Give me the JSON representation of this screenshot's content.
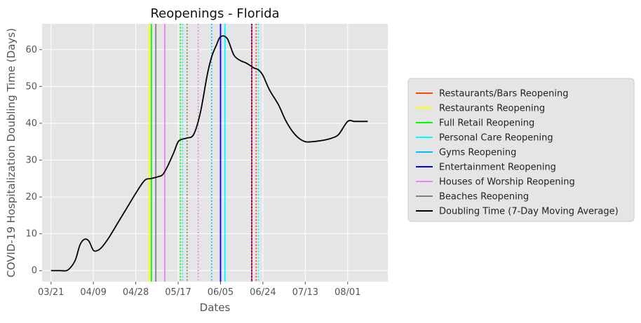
{
  "chart_data": {
    "type": "line",
    "title": "Reopenings - Florida",
    "xlabel": "Dates",
    "ylabel": "COVID-19 Hospitalization Doubling Time (Days)",
    "x_ticks": [
      "03/21",
      "04/09",
      "04/28",
      "05/17",
      "06/05",
      "06/24",
      "07/13",
      "08/01"
    ],
    "y_ticks": [
      0,
      10,
      20,
      30,
      40,
      50,
      60
    ],
    "xlim": [
      "2020-03-17",
      "2020-08-19"
    ],
    "ylim": [
      -3,
      67
    ],
    "grid": true,
    "legend_position": "right-outside",
    "series": [
      {
        "name": "Doubling Time (7-Day Moving Average)",
        "color": "#000000",
        "x": [
          "2020-03-21",
          "2020-03-25",
          "2020-03-28",
          "2020-03-30",
          "2020-04-01",
          "2020-04-03",
          "2020-04-05",
          "2020-04-07",
          "2020-04-09",
          "2020-04-11",
          "2020-04-13",
          "2020-04-16",
          "2020-04-20",
          "2020-04-24",
          "2020-04-28",
          "2020-05-02",
          "2020-05-05",
          "2020-05-08",
          "2020-05-10",
          "2020-05-12",
          "2020-05-15",
          "2020-05-17",
          "2020-05-19",
          "2020-05-21",
          "2020-05-24",
          "2020-05-27",
          "2020-05-30",
          "2020-06-01",
          "2020-06-03",
          "2020-06-05",
          "2020-06-08",
          "2020-06-11",
          "2020-06-14",
          "2020-06-16",
          "2020-06-18",
          "2020-06-20",
          "2020-06-22",
          "2020-06-24",
          "2020-06-27",
          "2020-07-01",
          "2020-07-04",
          "2020-07-07",
          "2020-07-10",
          "2020-07-13",
          "2020-07-16",
          "2020-07-19",
          "2020-07-22",
          "2020-07-25",
          "2020-07-28",
          "2020-08-01",
          "2020-08-04",
          "2020-08-07",
          "2020-08-10"
        ],
        "y": [
          0,
          0,
          0,
          1,
          3,
          7,
          8.5,
          8,
          5.5,
          5.5,
          6.5,
          9,
          13,
          17,
          21,
          24.5,
          25,
          25.5,
          26,
          28,
          32,
          35,
          35.7,
          36,
          37,
          43,
          53,
          58,
          61,
          63.5,
          63,
          58.5,
          57,
          56.5,
          55.8,
          55,
          54.5,
          53,
          49,
          45,
          41,
          38,
          36,
          35,
          35,
          35.2,
          35.5,
          36,
          37,
          40.5,
          40.5,
          40.5,
          40.5
        ]
      }
    ],
    "reopening_lines": [
      {
        "name": "Restaurants/Bars Reopening",
        "color": "#ff4500",
        "dates": [
          "2020-06-19"
        ],
        "dotted_dates": [
          "2020-06-21"
        ]
      },
      {
        "name": "Restaurants Reopening",
        "color": "#ffff00",
        "dates": [
          "2020-05-04"
        ],
        "dotted_dates": []
      },
      {
        "name": "Full Retail Reopening",
        "color": "#00ff00",
        "dates": [
          "2020-05-05"
        ],
        "dotted_dates": [
          "2020-05-18"
        ]
      },
      {
        "name": "Personal Care Reopening",
        "color": "#00ffff",
        "dates": [
          "2020-06-07"
        ],
        "dotted_dates": [
          "2020-05-19",
          "2020-06-22"
        ]
      },
      {
        "name": "Gyms Reopening",
        "color": "#00bfff",
        "dates": [],
        "dotted_dates": [
          "2020-06-01"
        ]
      },
      {
        "name": "Entertainment Reopening",
        "color": "#0000ff",
        "dates": [
          "2020-06-05"
        ],
        "dotted_dates": [
          "2020-06-19"
        ]
      },
      {
        "name": "Houses of Worship Reopening",
        "color": "#ee82ee",
        "dates": [
          "2020-05-11"
        ],
        "dotted_dates": [
          "2020-05-26"
        ]
      },
      {
        "name": "Beaches Reopening",
        "color": "#808080",
        "dates": [
          "2020-05-07"
        ],
        "dotted_dates": [
          "2020-05-21"
        ]
      }
    ],
    "legend": [
      {
        "label": "Restaurants/Bars Reopening",
        "color": "#ff4500"
      },
      {
        "label": "Restaurants Reopening",
        "color": "#ffff00"
      },
      {
        "label": "Full Retail Reopening",
        "color": "#00ff00"
      },
      {
        "label": "Personal Care Reopening",
        "color": "#00ffff"
      },
      {
        "label": "Gyms Reopening",
        "color": "#00bfff"
      },
      {
        "label": "Entertainment Reopening",
        "color": "#0000ff"
      },
      {
        "label": "Houses of Worship Reopening",
        "color": "#ee82ee"
      },
      {
        "label": "Beaches Reopening",
        "color": "#808080"
      },
      {
        "label": "Doubling Time (7-Day Moving Average)",
        "color": "#000000"
      }
    ],
    "colors": {
      "plot_background": "#e5e5e5",
      "grid": "#ffffff",
      "tick_label": "#555555",
      "axis_label": "#555555"
    }
  }
}
